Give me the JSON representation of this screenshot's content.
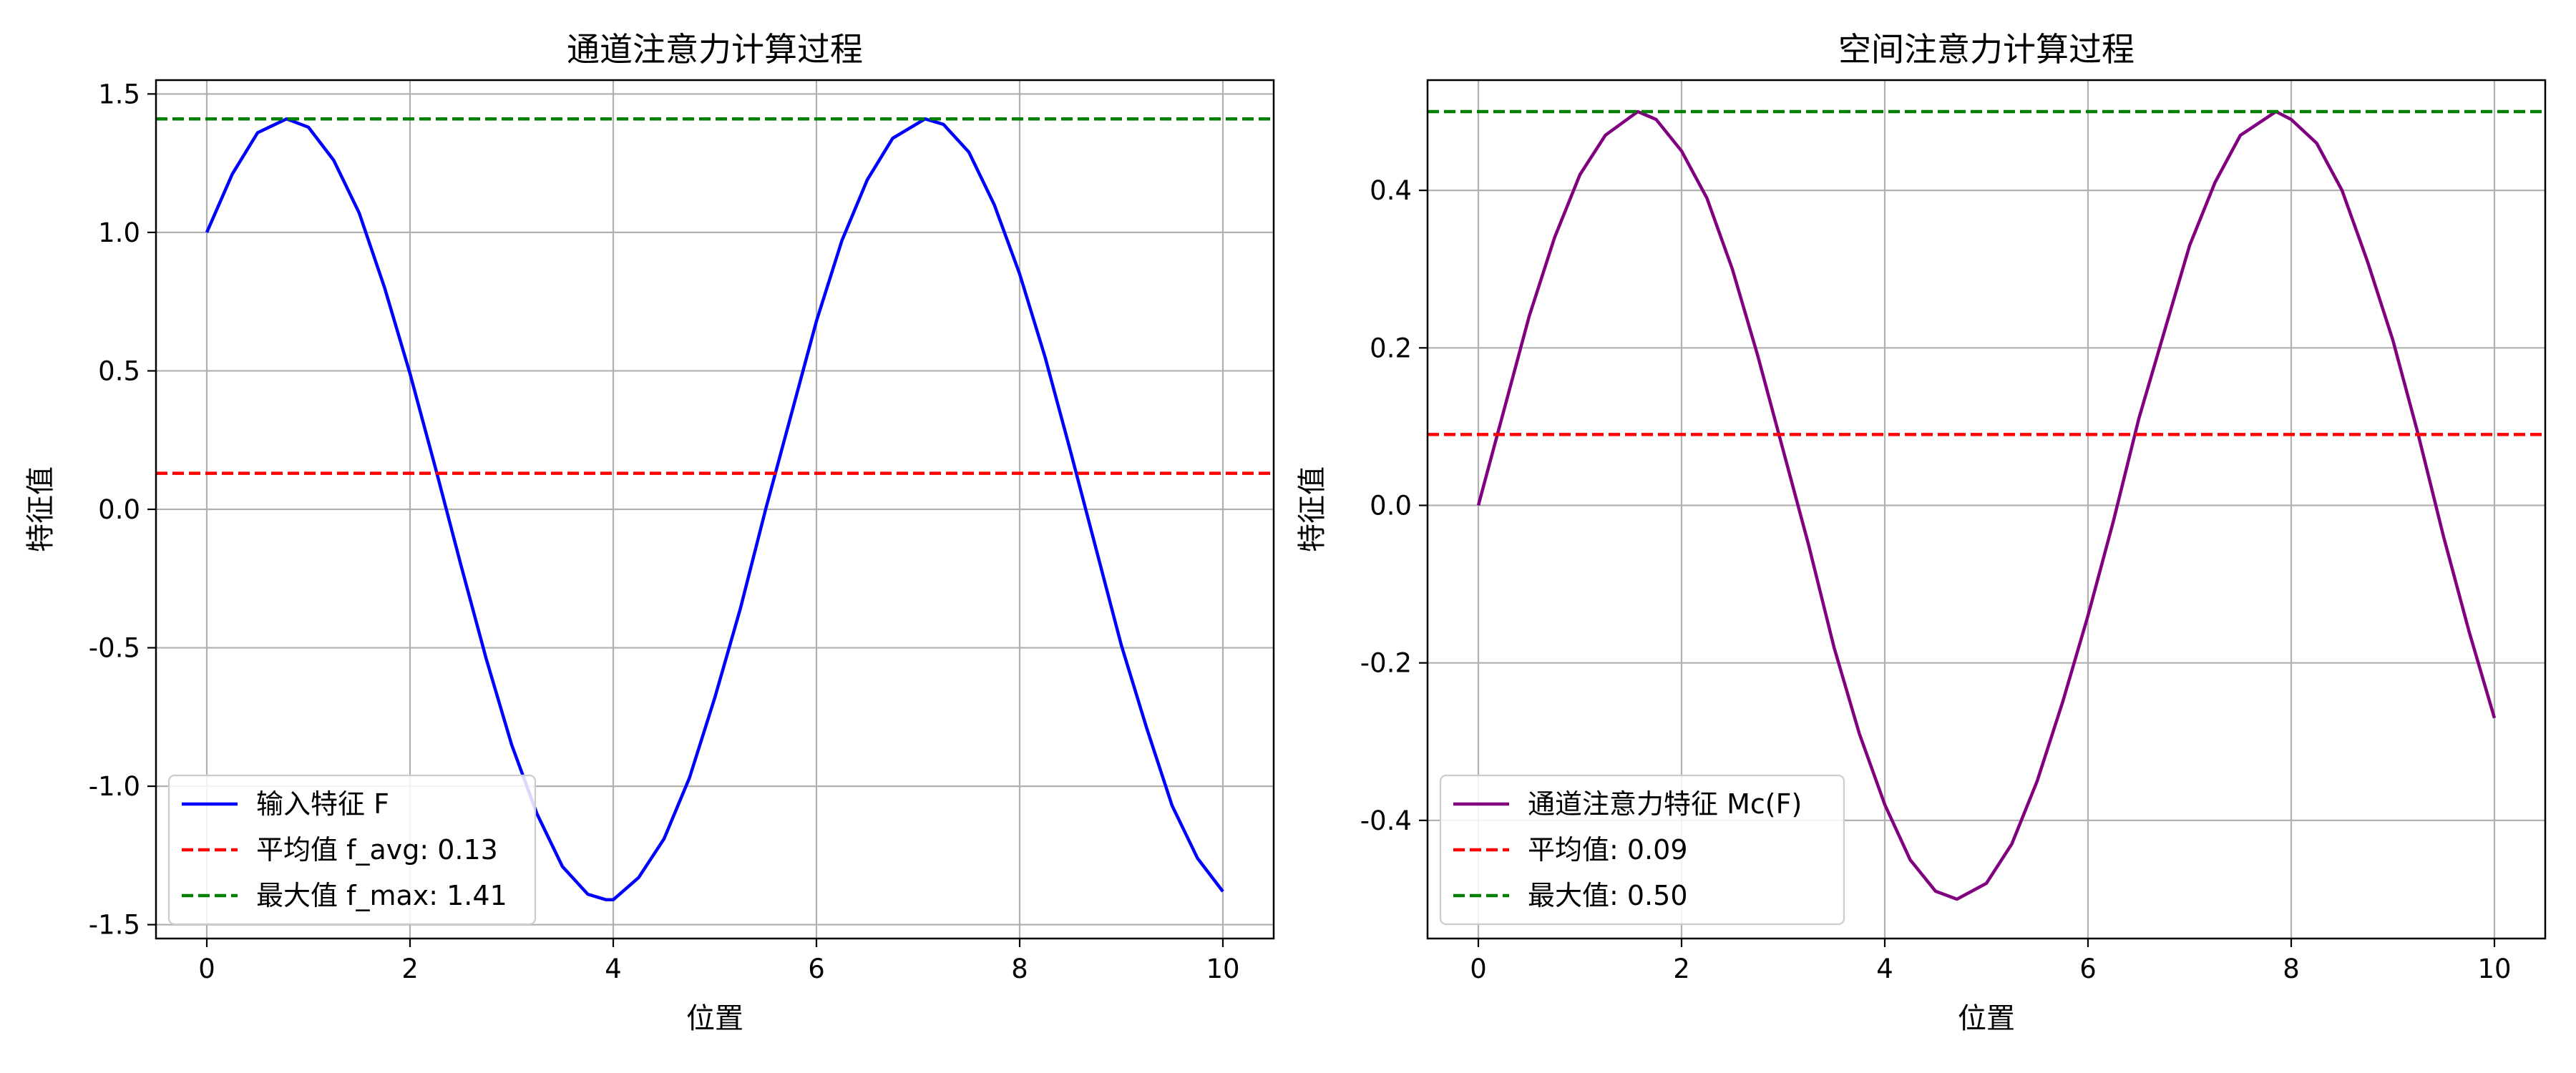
{
  "chart_data": [
    {
      "type": "line",
      "title": "通道注意力计算过程",
      "xlabel": "位置",
      "ylabel": "特征值",
      "xlim": [
        -0.5,
        10.5
      ],
      "ylim": [
        -1.55,
        1.55
      ],
      "xticks": [
        "0",
        "2",
        "4",
        "6",
        "8",
        "10"
      ],
      "yticks": [
        "-1.5",
        "-1.0",
        "-0.5",
        "0.0",
        "0.5",
        "1.0",
        "1.5"
      ],
      "grid": true,
      "legend_position": "lower-left",
      "series": [
        {
          "name": "输入特征 F",
          "style": "solid",
          "color": "#0000ff",
          "x": [
            0,
            0.25,
            0.5,
            0.785,
            1.0,
            1.25,
            1.5,
            1.75,
            2.0,
            2.25,
            2.5,
            2.75,
            3.0,
            3.25,
            3.5,
            3.75,
            3.93,
            4.0,
            4.25,
            4.5,
            4.75,
            5.0,
            5.25,
            5.5,
            5.75,
            6.0,
            6.25,
            6.5,
            6.75,
            7.07,
            7.25,
            7.5,
            7.75,
            8.0,
            8.25,
            8.5,
            8.75,
            9.0,
            9.25,
            9.5,
            9.75,
            10.0
          ],
          "y": [
            1.0,
            1.21,
            1.36,
            1.41,
            1.38,
            1.26,
            1.07,
            0.8,
            0.49,
            0.15,
            -0.2,
            -0.54,
            -0.85,
            -1.1,
            -1.29,
            -1.39,
            -1.41,
            -1.41,
            -1.33,
            -1.19,
            -0.97,
            -0.68,
            -0.36,
            -0.0,
            0.34,
            0.68,
            0.97,
            1.19,
            1.34,
            1.41,
            1.39,
            1.29,
            1.1,
            0.85,
            0.55,
            0.21,
            -0.14,
            -0.49,
            -0.79,
            -1.07,
            -1.26,
            -1.38
          ]
        },
        {
          "name": "平均值 f_avg: 0.13",
          "style": "dashed",
          "color": "#ff0000",
          "y_constant": 0.13
        },
        {
          "name": "最大值 f_max: 1.41",
          "style": "dashed",
          "color": "#008000",
          "y_constant": 1.41
        }
      ]
    },
    {
      "type": "line",
      "title": "空间注意力计算过程",
      "xlabel": "位置",
      "ylabel": "特征值",
      "xlim": [
        -0.5,
        10.5
      ],
      "ylim": [
        -0.55,
        0.54
      ],
      "xticks": [
        "0",
        "2",
        "4",
        "6",
        "8",
        "10"
      ],
      "yticks": [
        "-0.4",
        "-0.2",
        "0.0",
        "0.2",
        "0.4"
      ],
      "grid": true,
      "legend_position": "lower-left",
      "series": [
        {
          "name": "通道注意力特征 Mc(F)",
          "style": "solid",
          "color": "#800080",
          "x": [
            0,
            0.25,
            0.5,
            0.75,
            1.0,
            1.25,
            1.57,
            1.75,
            2.0,
            2.25,
            2.5,
            2.75,
            3.0,
            3.25,
            3.5,
            3.75,
            4.0,
            4.25,
            4.5,
            4.71,
            5.0,
            5.25,
            5.5,
            5.75,
            6.0,
            6.25,
            6.5,
            6.75,
            7.0,
            7.25,
            7.5,
            7.85,
            8.0,
            8.25,
            8.5,
            8.75,
            9.0,
            9.25,
            9.5,
            9.75,
            10.0
          ],
          "y": [
            0.0,
            0.12,
            0.24,
            0.34,
            0.42,
            0.47,
            0.5,
            0.49,
            0.45,
            0.39,
            0.3,
            0.19,
            0.07,
            -0.05,
            -0.18,
            -0.29,
            -0.38,
            -0.45,
            -0.49,
            -0.5,
            -0.48,
            -0.43,
            -0.35,
            -0.25,
            -0.14,
            -0.02,
            0.11,
            0.22,
            0.33,
            0.41,
            0.47,
            0.5,
            0.49,
            0.46,
            0.4,
            0.31,
            0.21,
            0.09,
            -0.04,
            -0.16,
            -0.27
          ]
        },
        {
          "name": "平均值: 0.09",
          "style": "dashed",
          "color": "#ff0000",
          "y_constant": 0.09
        },
        {
          "name": "最大值: 0.50",
          "style": "dashed",
          "color": "#008000",
          "y_constant": 0.5
        }
      ]
    }
  ]
}
